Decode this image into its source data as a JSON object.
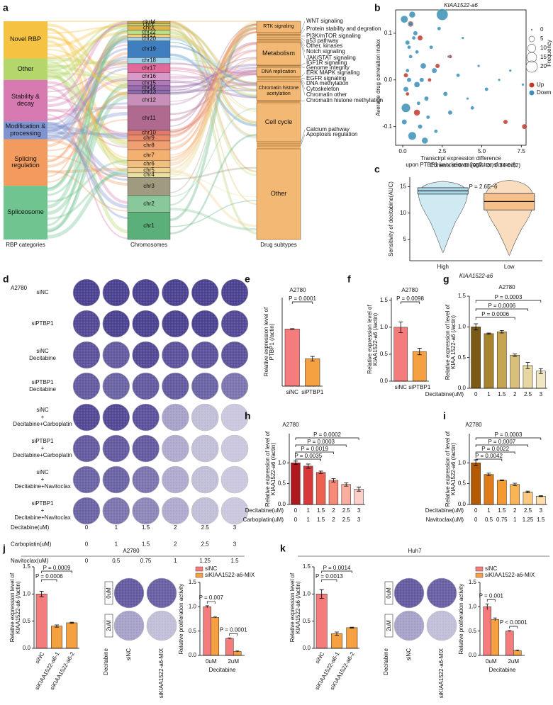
{
  "chart_data": [
    {
      "type": "sankey",
      "label": "a",
      "left_title": "RBP categories",
      "middle_title": "Chromosomes",
      "right_title": "Drug subtypes",
      "left_nodes": [
        {
          "name": "Novel RBP",
          "color": "#f5c242"
        },
        {
          "name": "Other",
          "color": "#b5d66b"
        },
        {
          "name": "Stability & decay",
          "color": "#d87ab2"
        },
        {
          "name": "Modification & processing",
          "color": "#7f93cf"
        },
        {
          "name": "Splicing regulation",
          "color": "#f39a5e"
        },
        {
          "name": "Spliceosome",
          "color": "#6fc490"
        }
      ],
      "middle_nodes": [
        "chrM",
        "chrY",
        "chrX",
        "chr22",
        "chr21",
        "chr20",
        "chr19",
        "chr18",
        "chr17",
        "chr16",
        "chr15",
        "chr14",
        "chr13",
        "chr12",
        "chr11",
        "chr10",
        "chr9",
        "chr8",
        "chr7",
        "chr6",
        "chr5",
        "chr4",
        "chr3",
        "chr2",
        "chr1"
      ],
      "right_nodes": [
        "RTK signaling",
        "Metabolism",
        "DNA replication",
        "Chromatin histone acetylation",
        "Cell cycle",
        "Other"
      ],
      "right_labels": [
        "WNT signaling",
        "Protein stability and degration",
        "PI3K/mTOR signaling",
        "p53 pathway",
        "Other, kinases",
        "Notch signaling",
        "JAK/STAT signaling",
        "IGF1R signaling",
        "Genome integrity",
        "ERK MAPK signaling",
        "EGFR signaling",
        "DNA methylation",
        "Cytoskeleton",
        "Chromatin other",
        "Chromatin histone methylation",
        "Calcium pathway",
        "Apoptosis regulation"
      ]
    },
    {
      "type": "scatter",
      "label": "b",
      "title": "KIAA1522-a6",
      "ylabel": "Average drug correlation index",
      "xlabel": [
        "Transcirpt expression difference",
        "upon PTBP1 knockdown (log2 transformed)"
      ],
      "xlim": [
        -0.45,
        7.8
      ],
      "ylim": [
        -0.14,
        0.15
      ],
      "xticks": [
        {
          "value": 0,
          "label": "0.0"
        },
        2.5,
        {
          "value": 5,
          "label": "5.0"
        },
        7.5
      ],
      "yticks": [
        -0.1,
        {
          "value": 0,
          "label": "0.0"
        },
        0.1
      ],
      "size_legend": {
        "title": "Frequency",
        "values": [
          0,
          5,
          10,
          15,
          20
        ]
      },
      "series": [
        {
          "name": "Up",
          "color": "#c0392b",
          "x": [
            0.5,
            1.1,
            2.2,
            0.3,
            0.9,
            3.0,
            6.5,
            7.7,
            1.7,
            0.2
          ],
          "values": [
            0.12,
            0.09,
            0.03,
            -0.03,
            -0.07,
            0.05,
            -0.09,
            -0.1,
            0,
            0.01
          ],
          "sizes": [
            5,
            4,
            3,
            2,
            6,
            2,
            3,
            4,
            2,
            3
          ]
        },
        {
          "name": "Down",
          "color": "#3a8fb7",
          "x": [
            0.1,
            0.3,
            0.5,
            0.2,
            0.8,
            1.0,
            1.3,
            0.6,
            0.4,
            1.6,
            2.0,
            2.3,
            2.7,
            0.9,
            1.1,
            0.2,
            3.5,
            4.1,
            4.8,
            5.3,
            6.1,
            0.5,
            1.4,
            0.7,
            2.5,
            3.0,
            0.3,
            1.8,
            0.9,
            0.1,
            1.2,
            2.9,
            4.4,
            6.8,
            7.6,
            0.6,
            1.5,
            2.1,
            0.4,
            3.8
          ],
          "values": [
            0.13,
            0.08,
            0.05,
            -0.02,
            0.1,
            -0.05,
            0.03,
            -0.12,
            0,
            -0.08,
            0.02,
            0.11,
            -0.03,
            0.06,
            -0.1,
            -0.06,
            0.01,
            -0.04,
            0.03,
            -0.02,
            0,
            0.12,
            -0.13,
            0.09,
            0.14,
            -0.07,
            0.02,
            0.07,
            -0.01,
            -0.09,
            0,
            0.05,
            -0.06,
            0.02,
            -0.01,
            0.14,
            -0.04,
            -0.11,
            0.07,
            0.09
          ],
          "sizes": [
            8,
            3,
            2,
            4,
            3,
            2,
            5,
            10,
            3,
            2,
            4,
            2,
            3,
            2,
            3,
            12,
            2,
            1,
            1,
            2,
            1,
            3,
            6,
            2,
            20,
            3,
            2,
            2,
            5,
            4,
            3,
            1,
            2,
            1,
            1,
            6,
            3,
            2,
            2,
            1
          ]
        }
      ]
    },
    {
      "type": "box",
      "label": "c",
      "title": "Cohen's d=0.48 (95% CI, 0.34-0.62)",
      "annotation": "P = 2.6E−6",
      "ylabel": "Sensitivity of decitabine(AUC)",
      "xlabel": "KIAA1522-a6",
      "categories": [
        "High",
        "Low"
      ],
      "ylim": [
        1,
        16.8
      ],
      "yticks": [
        5,
        10,
        15
      ],
      "boxes": [
        {
          "q1": 13.6,
          "median": 14.2,
          "q3": 14.8,
          "whislo": 2.5,
          "whishi": 16,
          "color": "#a8d8ea"
        },
        {
          "q1": 10.6,
          "median": 12.2,
          "q3": 13.7,
          "whislo": 2,
          "whishi": 16.2,
          "color": "#f5c08a"
        }
      ]
    },
    {
      "type": "plate_grid",
      "label": "d",
      "title": "A2780",
      "rows": [
        [
          "siNC"
        ],
        [
          "siPTBP1"
        ],
        [
          "siNC",
          "Decitabine"
        ],
        [
          "siPTBP1",
          "Decitabine"
        ],
        [
          "siNC",
          "+",
          "Decitabine+Carboplatin"
        ],
        [
          "siPTBP1",
          "+",
          "Decitabine+Carboplatin"
        ],
        [
          "siNC",
          "+",
          "Decitabine+Navitoclax"
        ],
        [
          "siPTBP1",
          "+",
          "Decitabine+Navitoclax"
        ]
      ],
      "dose_rows": [
        {
          "name": "Decitabine(uM)",
          "values": [
            "0",
            "1",
            "1.5",
            "2",
            "2.5",
            "3"
          ]
        },
        {
          "name": "Carboplatin(uM)",
          "values": [
            "0",
            "1",
            "1.5",
            "2",
            "2.5",
            "3"
          ]
        },
        {
          "name": "Navitoclax(uM)",
          "values": [
            "0",
            "0.5",
            "0.75",
            "1",
            "1.25",
            "1.5"
          ]
        }
      ]
    },
    {
      "type": "bar",
      "label": "e",
      "title": "A2780",
      "ylabel": [
        "Relative expression level of",
        "PTBP1 (/actin)"
      ],
      "categories": [
        "siNC",
        "siPTBP1"
      ],
      "values": [
        1.0,
        0.48
      ],
      "errors": [
        0.005,
        0.04
      ],
      "colors": [
        "#f47c7c",
        "#f5a142"
      ],
      "ylim": [
        0,
        1.55
      ],
      "brackets": [
        {
          "text": "P = 0.0001",
          "from": 0,
          "to": 1
        }
      ]
    },
    {
      "type": "bar",
      "label": "f",
      "title": "A2780",
      "ylabel": [
        "Relative expression level of",
        "KIAA1522-a6 (/actin)"
      ],
      "categories": [
        "siNC",
        "siPTBP1"
      ],
      "values": [
        1.0,
        0.55
      ],
      "errors": [
        0.1,
        0.06
      ],
      "colors": [
        "#f47c7c",
        "#f5a142"
      ],
      "ylim": [
        0,
        1.55
      ],
      "yticks": [
        {
          "value": 0,
          "label": "0.0"
        },
        0.5,
        {
          "value": 1,
          "label": "1.0"
        },
        1.5
      ],
      "brackets": [
        {
          "text": "P = 0.0098",
          "from": 0,
          "to": 1
        }
      ]
    },
    {
      "type": "bar",
      "label": "g",
      "title": "A2780",
      "ylabel": [
        "Relative expression of level of",
        "KIAA 1522-a6 (/actin)"
      ],
      "categories_name": "Decitabine(uM)",
      "categories": [
        "0",
        "1",
        "1.5",
        "2",
        "2.5",
        "3"
      ],
      "values": [
        1.0,
        0.89,
        0.92,
        0.54,
        0.37,
        0.28
      ],
      "errors": [
        0.05,
        0.01,
        0.02,
        0.02,
        0.05,
        0.04
      ],
      "colors": [
        "#7a5a14",
        "#a8842e",
        "#c6a552",
        "#d8c07a",
        "#e6d6a0",
        "#f0e6c4"
      ],
      "ylim": [
        0,
        1.5
      ],
      "yticks": [
        {
          "value": 0,
          "label": "0.0"
        },
        0.5,
        {
          "value": 1,
          "label": "1.0"
        },
        1.5
      ],
      "brackets": [
        {
          "text": "P = 0.0003",
          "from": 0,
          "to": 5
        },
        {
          "text": "P = 0.0006",
          "from": 0,
          "to": 4
        },
        {
          "text": "P = 0.0006",
          "from": 0,
          "to": 3
        }
      ]
    },
    {
      "type": "bar",
      "label": "h",
      "title": "A2780",
      "ylabel": [
        "Relative expression of level of",
        "KIAA1522-a6 (/actin)"
      ],
      "categories_name": "Decitabine(uM)",
      "categories": [
        "0",
        "1",
        "1.5",
        "2",
        "2.5",
        "3"
      ],
      "categories2_name": "Carboplatin(uM)",
      "categories2": [
        "0",
        "1",
        "1.5",
        "2",
        "2.5",
        "3"
      ],
      "values": [
        1.0,
        0.92,
        0.77,
        0.58,
        0.48,
        0.37
      ],
      "errors": [
        0.04,
        0.05,
        0.03,
        0.04,
        0.04,
        0.05
      ],
      "colors": [
        "#b01820",
        "#d8383a",
        "#ee6050",
        "#f58a78",
        "#f9aea0",
        "#fcd0c8"
      ],
      "ylim": [
        0,
        1.7
      ],
      "yticks": [
        {
          "value": 0,
          "label": "0.0"
        },
        0.5,
        {
          "value": 1,
          "label": "1.0"
        }
      ],
      "brackets": [
        {
          "text": "P = 0.0002",
          "from": 0,
          "to": 5
        },
        {
          "text": "P = 0.0003",
          "from": 0,
          "to": 4
        },
        {
          "text": "P = 0.0019",
          "from": 0,
          "to": 3
        },
        {
          "text": "P = 0.0035",
          "from": 0,
          "to": 2
        }
      ]
    },
    {
      "type": "bar",
      "label": "i",
      "title": "A2780",
      "ylabel": [
        "Relative expression of level of",
        "KIAA1522-a6 (/actin)"
      ],
      "categories_name": "Decitabine(uM)",
      "categories": [
        "0",
        "1",
        "1.5",
        "2",
        "2.5",
        "3"
      ],
      "categories2_name": "Navitoclax(uM)",
      "categories2": [
        "0",
        "0.5",
        "0.75",
        "1",
        "1.25",
        "1.5"
      ],
      "values": [
        1.0,
        0.72,
        0.58,
        0.48,
        0.3,
        0.2
      ],
      "errors": [
        0.07,
        0.03,
        0.01,
        0.03,
        0.02,
        0.01
      ],
      "colors": [
        "#b35a00",
        "#e07b1a",
        "#f59a30",
        "#f8b455",
        "#fac880",
        "#fcdcaa"
      ],
      "ylim": [
        0,
        1.7
      ],
      "yticks": [
        {
          "value": 0,
          "label": "0.0"
        },
        0.5,
        {
          "value": 1,
          "label": "1.0"
        }
      ],
      "brackets": [
        {
          "text": "P = 0.0003",
          "from": 0,
          "to": 5
        },
        {
          "text": "P = 0.0007",
          "from": 0,
          "to": 4
        },
        {
          "text": "P = 0.0022",
          "from": 0,
          "to": 3
        },
        {
          "text": "P = 0.0042",
          "from": 0,
          "to": 2
        }
      ]
    },
    {
      "type": "bar",
      "label": "j",
      "title": "A2780",
      "ylabel": [
        "Relative expression level of",
        "KIAA1522-a6 (/actin)"
      ],
      "categories": [
        "siNC",
        "siKIAA1522-a6-1",
        "siKIAA1522-a6-2"
      ],
      "values": [
        1.0,
        0.41,
        0.47
      ],
      "errors": [
        0.05,
        0.02,
        0.01
      ],
      "colors": [
        "#f47c7c",
        "#f5a142",
        "#f5a142"
      ],
      "ylim": [
        0,
        1.5
      ],
      "yticks": [
        {
          "value": 0,
          "label": "0.0"
        },
        0.5,
        {
          "value": 1,
          "label": "1.0"
        },
        1.5
      ],
      "brackets": [
        {
          "text": "P = 0.0009",
          "from": 0,
          "to": 2
        },
        {
          "text": "P = 0.0006",
          "from": 0,
          "to": 1
        }
      ]
    },
    {
      "type": "plate_pair",
      "rows": [
        "0uM",
        "2uM"
      ],
      "columns": [
        "siNC",
        "siKIAA1522-a6-MIX"
      ],
      "side_label": "Decitabine"
    },
    {
      "type": "grouped_bar",
      "ylabel": "Relative proliferation activity",
      "xlabel": "Decitabine",
      "categories": [
        "0uM",
        "2uM"
      ],
      "series": [
        {
          "name": "siNC",
          "color": "#f47c7c",
          "values": [
            1.0,
            0.35
          ],
          "errors": [
            0.02,
            0.01
          ]
        },
        {
          "name": "siKIAA1522-a6-MIX",
          "color": "#f5a142",
          "values": [
            0.78,
            0.08
          ],
          "errors": [
            0.01,
            0.01
          ]
        }
      ],
      "ylim": [
        0,
        1.5
      ],
      "yticks": [
        {
          "value": 0,
          "label": "0.0"
        },
        0.5,
        {
          "value": 1,
          "label": "1.0"
        },
        1.5
      ],
      "brackets": [
        "P = 0.007",
        "P = 0.0001"
      ]
    },
    {
      "type": "bar",
      "label": "k",
      "title": "Huh7",
      "ylabel": [
        "Relative expression level of",
        "KIAA1522-a6 (/actin)"
      ],
      "categories": [
        "siNC",
        "siKIAA1522-a6-1",
        "siKIAA1522-a6-2"
      ],
      "values": [
        1.0,
        0.27,
        0.38
      ],
      "errors": [
        0.08,
        0.03,
        0.01
      ],
      "colors": [
        "#f47c7c",
        "#f5a142",
        "#f5a142"
      ],
      "ylim": [
        0,
        1.5
      ],
      "yticks": [
        {
          "value": 0,
          "label": "0.0"
        },
        0.5,
        {
          "value": 1,
          "label": "1.0"
        },
        1.5
      ],
      "brackets": [
        {
          "text": "P = 0.0014",
          "from": 0,
          "to": 2
        },
        {
          "text": "P = 0.0013",
          "from": 0,
          "to": 1
        }
      ]
    },
    {
      "type": "plate_pair",
      "rows": [
        "0uM",
        "2uM"
      ],
      "columns": [
        "siNC",
        "siKIAA1522-a6-MIX"
      ],
      "side_label": "Decitabine"
    },
    {
      "type": "grouped_bar",
      "ylabel": "Relative proliferation activity",
      "xlabel": "Decitabine",
      "categories": [
        "0uM",
        "2uM"
      ],
      "series": [
        {
          "name": "siNC",
          "color": "#f47c7c",
          "values": [
            1.0,
            0.5
          ],
          "errors": [
            0.06,
            0.01
          ]
        },
        {
          "name": "siKIAA1522-a6-MIX",
          "color": "#f5a142",
          "values": [
            0.74,
            0.1
          ],
          "errors": [
            0.03,
            0.01
          ]
        }
      ],
      "ylim": [
        0,
        1.5
      ],
      "yticks": [
        {
          "value": 0,
          "label": "0.0"
        },
        0.5,
        {
          "value": 1,
          "label": "1.0"
        },
        1.5
      ],
      "brackets": [
        "P = 0.001",
        "P < 0.0001"
      ]
    }
  ]
}
